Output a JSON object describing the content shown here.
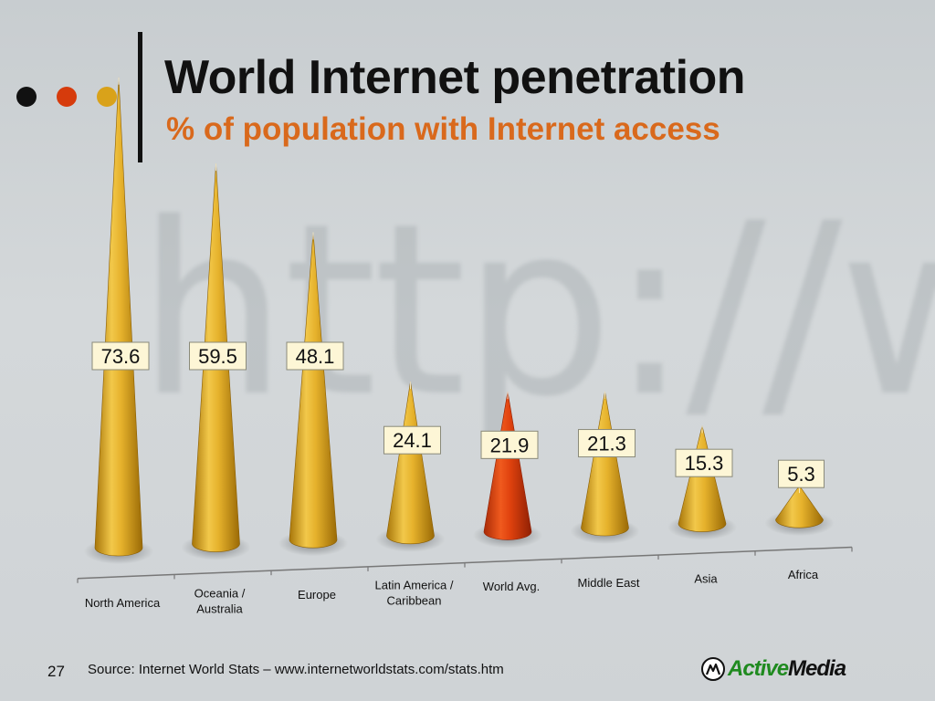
{
  "header": {
    "title": "World Internet penetration",
    "subtitle": "% of population with Internet access",
    "dot_colors": [
      "#111111",
      "#d63b0c",
      "#d9a21a"
    ]
  },
  "watermark_text": "http://ww",
  "chart_data": {
    "type": "bar",
    "style": "cone",
    "categories": [
      "North America",
      "Oceania / Australia",
      "Europe",
      "Latin America / Caribbean",
      "World Avg.",
      "Middle East",
      "Asia",
      "Africa"
    ],
    "values": [
      73.6,
      59.5,
      48.1,
      24.1,
      21.9,
      21.3,
      15.3,
      5.3
    ],
    "value_labels": [
      "73.6",
      "59.5",
      "48.1",
      "24.1",
      "21.9",
      "21.3",
      "15.3",
      "5.3"
    ],
    "highlight_category": "World Avg.",
    "bar_color": "#d9a21a",
    "highlight_color": "#d63b0c",
    "title": "",
    "xlabel": "",
    "ylabel": "",
    "ylim": [
      0,
      80
    ],
    "grid": false,
    "legend": "none"
  },
  "footer": {
    "page_number": "27",
    "source": "Source: Internet World Stats – www.internetworldstats.com/stats.htm",
    "logo_text_a": "Active",
    "logo_text_b": "Media"
  }
}
